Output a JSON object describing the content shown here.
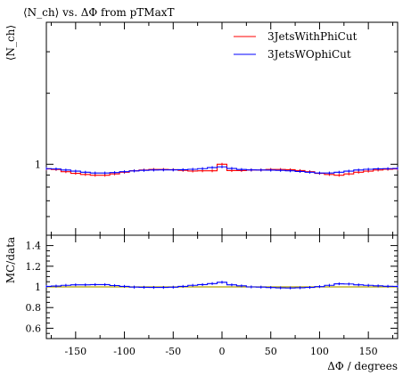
{
  "chart_data": [
    {
      "type": "line",
      "title": "⟨N_ch⟩ vs. ΔΦ from pTMaxT",
      "ylabel": "⟨N_ch⟩",
      "xlim": [
        -180,
        180
      ],
      "ylim": [
        0.5,
        4
      ],
      "yscale": "log",
      "yticks": [
        1
      ],
      "legend_position": "top-right",
      "x": [
        -180,
        -170,
        -160,
        -150,
        -140,
        -130,
        -120,
        -110,
        -100,
        -90,
        -80,
        -70,
        -60,
        -50,
        -40,
        -30,
        -20,
        -10,
        0,
        10,
        20,
        30,
        40,
        50,
        60,
        70,
        80,
        90,
        100,
        110,
        120,
        130,
        140,
        150,
        160,
        170,
        180
      ],
      "series": [
        {
          "name": "3JetsWithPhiCut",
          "color": "#ff0000",
          "values": [
            0.955,
            0.95,
            0.93,
            0.915,
            0.905,
            0.898,
            0.898,
            0.91,
            0.925,
            0.938,
            0.945,
            0.95,
            0.95,
            0.948,
            0.942,
            0.936,
            0.938,
            0.938,
            1.0,
            0.94,
            0.94,
            0.945,
            0.945,
            0.95,
            0.95,
            0.948,
            0.94,
            0.93,
            0.915,
            0.905,
            0.898,
            0.91,
            0.925,
            0.935,
            0.945,
            0.952,
            0.955
          ]
        },
        {
          "name": "3JetsWOphiCut",
          "color": "#0000ff",
          "values": [
            0.958,
            0.955,
            0.945,
            0.935,
            0.925,
            0.918,
            0.918,
            0.922,
            0.93,
            0.937,
            0.942,
            0.945,
            0.946,
            0.946,
            0.948,
            0.952,
            0.958,
            0.968,
            0.975,
            0.96,
            0.95,
            0.946,
            0.945,
            0.944,
            0.942,
            0.938,
            0.932,
            0.925,
            0.918,
            0.918,
            0.925,
            0.935,
            0.945,
            0.952,
            0.956,
            0.958,
            0.96
          ]
        }
      ]
    },
    {
      "type": "line",
      "xlabel": "ΔΦ / degrees",
      "ylabel": "MC/data",
      "xlim": [
        -180,
        180
      ],
      "ylim": [
        0.5,
        1.5
      ],
      "xticks": [
        -150,
        -100,
        -50,
        0,
        50,
        100,
        150
      ],
      "yticks": [
        0.6,
        0.8,
        1,
        1.2,
        1.4
      ],
      "reference_line": 1,
      "x": [
        -180,
        -170,
        -160,
        -150,
        -140,
        -130,
        -120,
        -110,
        -100,
        -90,
        -80,
        -70,
        -60,
        -50,
        -40,
        -30,
        -20,
        -10,
        0,
        10,
        20,
        30,
        40,
        50,
        60,
        70,
        80,
        90,
        100,
        110,
        120,
        130,
        140,
        150,
        160,
        170,
        180
      ],
      "series": [
        {
          "name": "3JetsWithPhiCut",
          "color": "#b5a400",
          "values": [
            1,
            1,
            1,
            1,
            1,
            1,
            1,
            1,
            1,
            1,
            1,
            1,
            1,
            1,
            1,
            1,
            1,
            1,
            1,
            1,
            1,
            1,
            1,
            1,
            1,
            1,
            1,
            1,
            1,
            1,
            1,
            1,
            1,
            1,
            1,
            1,
            1
          ]
        },
        {
          "name": "3JetsWOphiCut",
          "color": "#0000ff",
          "values": [
            1.005,
            1.008,
            1.015,
            1.02,
            1.02,
            1.022,
            1.022,
            1.013,
            1.005,
            0.998,
            0.996,
            0.995,
            0.995,
            0.997,
            1.005,
            1.015,
            1.022,
            1.032,
            1.045,
            1.02,
            1.01,
            1.0,
            0.998,
            0.994,
            0.991,
            0.99,
            0.992,
            0.995,
            1.003,
            1.015,
            1.03,
            1.028,
            1.02,
            1.015,
            1.01,
            1.006,
            1.005
          ]
        }
      ]
    }
  ]
}
